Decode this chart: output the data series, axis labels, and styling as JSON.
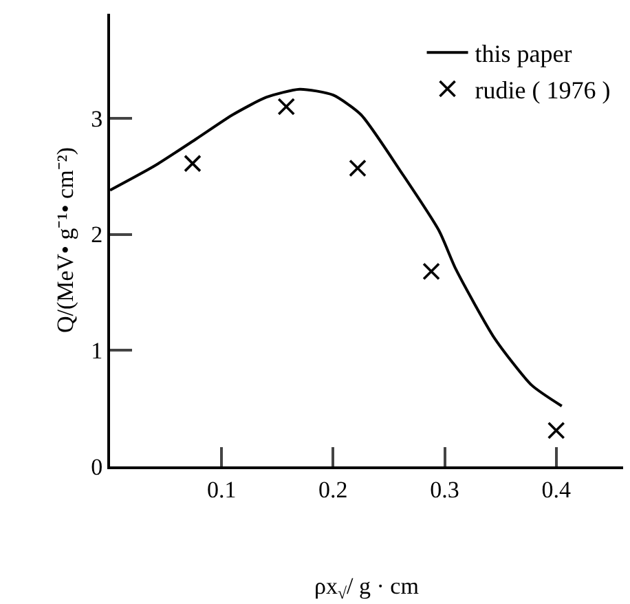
{
  "chart_data": {
    "type": "line",
    "xlabel": "ρx$_{√}$/ g · cm",
    "ylabel": "Q/(MeV• g⁻¹• cm⁻²)",
    "series": [
      {
        "name": "this paper",
        "color": "#000000",
        "marker": "none",
        "line_style": "solid",
        "x": [
          0.0,
          0.04,
          0.077,
          0.11,
          0.14,
          0.17,
          0.2,
          0.225,
          0.26,
          0.295,
          0.31,
          0.345,
          0.378,
          0.405
        ],
        "values": [
          2.38,
          2.59,
          2.82,
          3.03,
          3.18,
          3.25,
          3.2,
          3.03,
          2.55,
          2.03,
          1.7,
          1.1,
          0.7,
          0.52
        ]
      },
      {
        "name": "rudie ( 1976 )",
        "type": "scatter",
        "color": "#000000",
        "marker": "cross",
        "x": [
          0.074,
          0.158,
          0.222,
          0.288,
          0.4
        ],
        "values": [
          2.61,
          3.1,
          2.57,
          1.68,
          0.31
        ]
      }
    ],
    "xlim": [
      0,
      0.46
    ],
    "xticks": [
      0.1,
      0.2,
      0.3,
      0.4
    ],
    "ylim": [
      0,
      3.9
    ],
    "yticks": [
      0,
      1,
      2,
      3
    ],
    "legend": "top right"
  }
}
